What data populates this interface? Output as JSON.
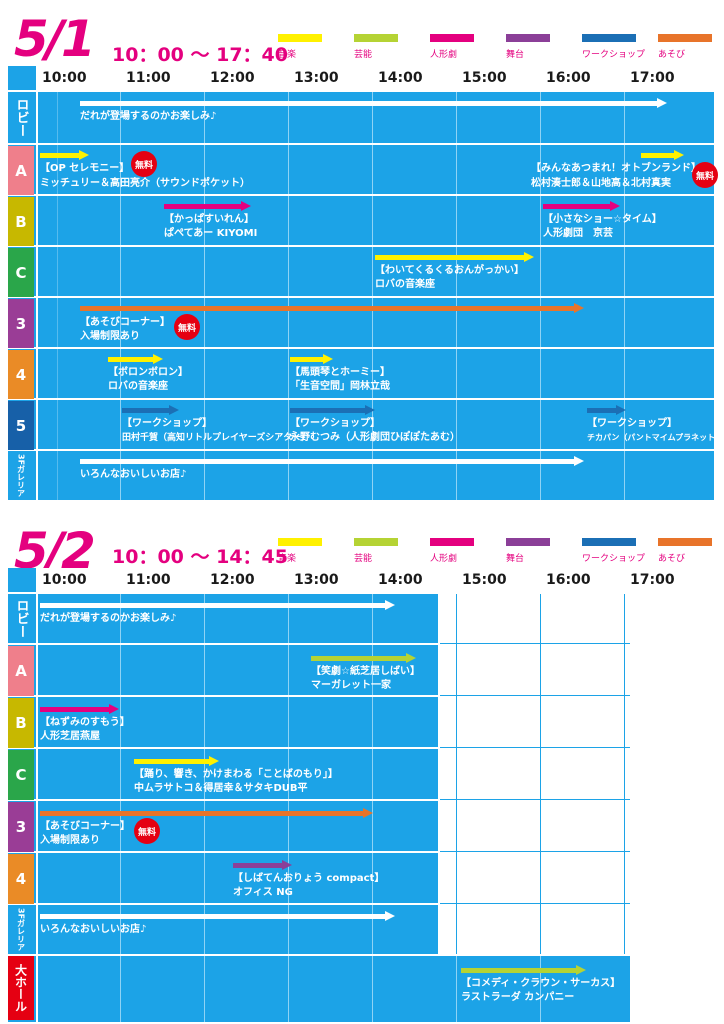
{
  "day1": {
    "date": "5/1",
    "time_range": "10：00 〜 17：40",
    "hours": [
      "10:00",
      "11:00",
      "12:00",
      "13:00",
      "14:00",
      "15:00",
      "16:00",
      "17:00"
    ],
    "rows": [
      "ロビー",
      "A",
      "B",
      "C",
      "3",
      "4",
      "5",
      "3Fガレリア"
    ],
    "events": {
      "lobby": "だれが登場するのかお楽しみ♪",
      "a1": "【OP セレモニー】",
      "a1b": "ミッチュリー＆高田亮介（サウンドポケット）",
      "a2": "【みんなあつまれ！オトブンランド】",
      "a2b": "松村湊士郎＆山地高＆北村真実",
      "b1": "【かっぱすいれん】",
      "b1b": "ぱぺてあー KIYOMI",
      "b2": "【小さなショー☆タイム】",
      "b2b": "人形劇団　京芸",
      "c1": "【わいてくるくるおんがっかい】",
      "c1b": "ロバの音楽座",
      "r3": "【あそびコーナー】",
      "r3b": "入場制限あり",
      "r4a": "【ボロンボロン】",
      "r4ab": "ロバの音楽座",
      "r4b": "【馬頭琴とホーミー】",
      "r4bb": "「生音空間」岡林立哉",
      "r5a": "【ワークショップ】",
      "r5ab": "田村千賀（高知リトルプレイヤーズシアター）",
      "r5b": "【ワークショップ】",
      "r5bb": "永野むつみ（人形劇団ひぽぽたあむ）",
      "r5c": "【ワークショップ】",
      "r5cb": "チカパン（パントマイムプラネット）",
      "gal": "いろんなおいしいお店♪",
      "free": "無料"
    }
  },
  "day2": {
    "date": "5/2",
    "time_range": "10：00 〜 14：45",
    "hours": [
      "10:00",
      "11:00",
      "12:00",
      "13:00",
      "14:00",
      "15:00",
      "16:00",
      "17:00"
    ],
    "rows": [
      "ロビー",
      "A",
      "B",
      "C",
      "3",
      "4",
      "3Fガレリア",
      "大ホール"
    ],
    "events": {
      "lobby": "だれが登場するのかお楽しみ♪",
      "a1": "【笑劇☆紙芝居しばい】",
      "a1b": "マーガレット一家",
      "b1": "【ねずみのすもう】",
      "b1b": "人形芝居燕屋",
      "c1": "【踊り、響き、かけまわる「ことばのもり」】",
      "c1b": "中ムラサトコ＆得居幸＆サタキDUB平",
      "r3": "【あそびコーナー】",
      "r3b": "入場制限あり",
      "r4": "【しばてんおりょう compact】",
      "r4b": "オフィス NG",
      "gal": "いろんなおいしいお店♪",
      "hall": "【コメディ・クラウン・サーカス】",
      "hallb": "ラストラーダ カンパニー",
      "free": "無料"
    }
  },
  "legend": [
    "音楽",
    "芸能",
    "人形劇",
    "舞台",
    "ワークショップ",
    "あそび"
  ],
  "colors": {
    "music": "#fff100",
    "geino": "#b5d334",
    "puppet": "#e4007f",
    "stage": "#8b3f98",
    "workshop": "#1b6fb5",
    "play": "#e8742a",
    "lobby": "#ffffff",
    "gallery": "#ffffff"
  }
}
